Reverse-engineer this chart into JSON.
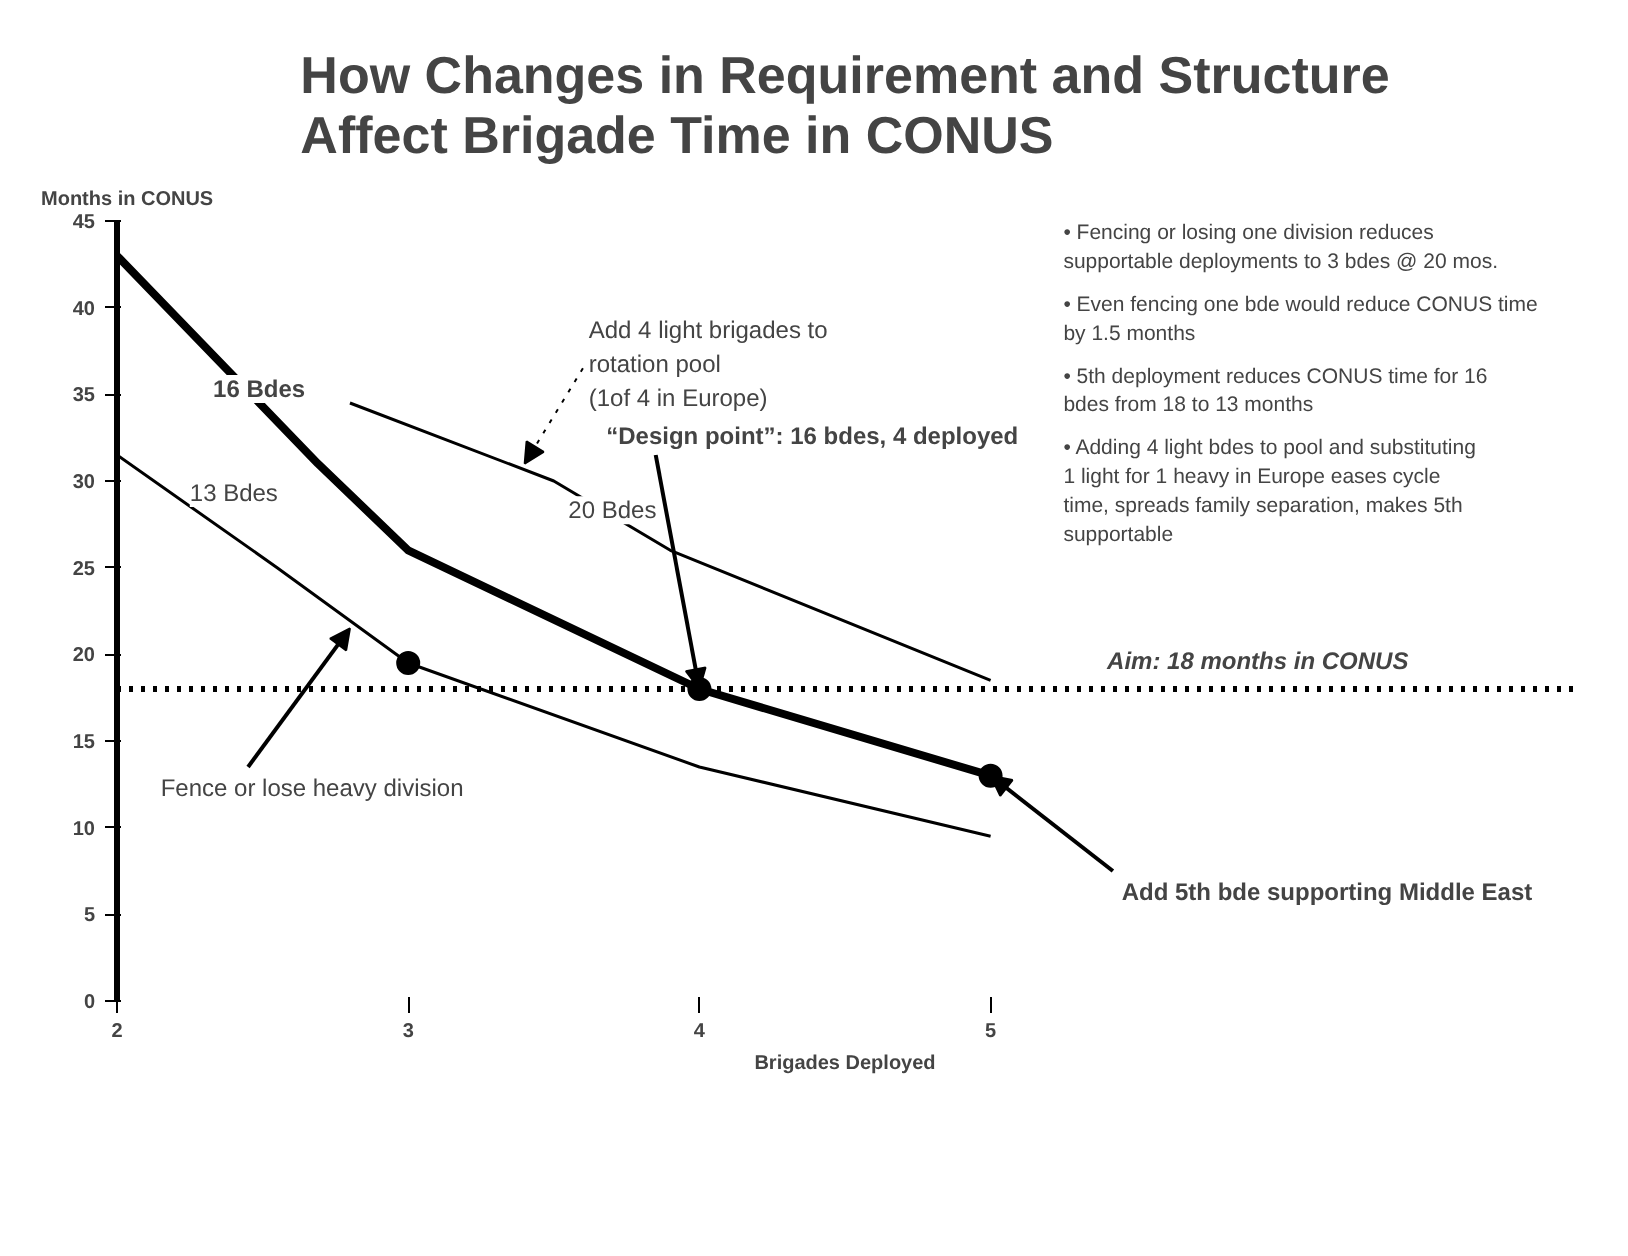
{
  "chart_data": {
    "type": "line",
    "title": "How Changes in Requirement and Structure\nAffect Brigade Time in CONUS",
    "xlabel": "Brigades Deployed",
    "ylabel": "Months in CONUS",
    "xlim": [
      2,
      7
    ],
    "xticks": [
      2,
      3,
      4,
      5
    ],
    "ylim": [
      0,
      45
    ],
    "yticks": [
      0,
      5,
      10,
      15,
      20,
      25,
      30,
      35,
      40,
      45
    ],
    "grid": false,
    "legend": false,
    "series": [
      {
        "name": "16 Bdes",
        "color": "#000000",
        "x": [
          2,
          2.69,
          3,
          4,
          5
        ],
        "values": [
          43,
          31,
          26,
          18,
          13
        ]
      },
      {
        "name": "13 Bdes",
        "color": "#000000",
        "x": [
          2,
          2.55,
          3,
          4,
          5
        ],
        "values": [
          31.5,
          25,
          19.5,
          13.5,
          9.5
        ]
      },
      {
        "name": "20 Bdes",
        "color": "#000000",
        "x": [
          2.8,
          3.5,
          3.9,
          5
        ],
        "values": [
          34.5,
          30,
          26,
          18.5
        ]
      },
      {
        "type": "scatter",
        "color": "#000000",
        "marker": "circle",
        "x": [
          3,
          4,
          5
        ],
        "values": [
          19.5,
          18,
          13
        ]
      }
    ],
    "ref_lines": [
      {
        "axis": "y",
        "value": 18,
        "label": "Aim: 18 months in CONUS",
        "line_style": "dotted",
        "color": "#000000"
      }
    ],
    "annotations": [
      {
        "text": "Add 4 light brigades to\nrotation pool\n(1of 4 in Europe)",
        "x": 3.4,
        "y": 31
      },
      {
        "text": "“Design point”:  16 bdes, 4 deployed",
        "x": 4,
        "y": 18
      },
      {
        "text": "Fence or lose heavy division",
        "x": 2.8,
        "y": 21.5
      },
      {
        "text": "Add 5th bde supporting Middle East",
        "x": 5,
        "y": 13
      },
      "• Fencing or losing one division reduces supportable deployments to 3 bdes @ 20 mos.",
      "• Even fencing one bde would reduce CONUS time by 1.5 months",
      "• 5th deployment reduces CONUS time for 16 bdes from 18 to 13 months",
      "• Adding 4 light bdes to pool and substituting 1 light for 1 heavy in Europe eases cycle time, spreads family separation, makes 5th supportable"
    ]
  }
}
